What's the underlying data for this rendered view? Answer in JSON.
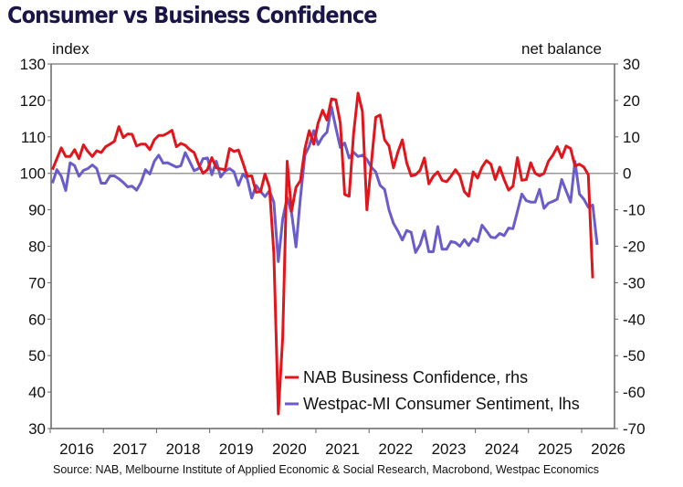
{
  "chart_data": {
    "type": "line",
    "title": "Consumer vs Business Confidence",
    "ylabel_left": "index",
    "ylabel_right": "net balance",
    "ylim_left": [
      30,
      130
    ],
    "ylim_right": [
      -70,
      30
    ],
    "yticks_left": [
      "130",
      "120",
      "110",
      "100",
      "90",
      "80",
      "70",
      "60",
      "50",
      "40",
      "30"
    ],
    "yticks_right": [
      "30",
      "20",
      "10",
      "0",
      "-10",
      "-20",
      "-30",
      "-40",
      "-50",
      "-60",
      "-70"
    ],
    "xticks": [
      "2016",
      "2017",
      "2018",
      "2019",
      "2020",
      "2021",
      "2022",
      "2023",
      "2024",
      "2025",
      "2026"
    ],
    "x_start": "2016-01",
    "x_frequency": "monthly",
    "grid": false,
    "legend_position": "bottom-right",
    "source": "Source: NAB, Melbourne Institute of Applied Economic & Social Research, Macrobond, Westpac Economics",
    "series": [
      {
        "name": "NAB Business Confidence, rhs",
        "axis": "right",
        "color": "#e0161c",
        "values": [
          1,
          4,
          7,
          4.6,
          4.6,
          6.5,
          4,
          7.8,
          6,
          4.6,
          6.2,
          5.7,
          7.3,
          8,
          8.8,
          12.8,
          9.8,
          10.8,
          10.7,
          7.5,
          8,
          8,
          6.5,
          9.2,
          10.4,
          10.4,
          11,
          11.8,
          7.3,
          8.2,
          7.7,
          6.5,
          5.7,
          2.5,
          0,
          1,
          4.3,
          1.5,
          1.2,
          1,
          6.8,
          6,
          6.4,
          2.9,
          -0.8,
          -0.7,
          -5.2,
          -5,
          -0.2,
          -3.8,
          -22,
          -66,
          -45,
          3.3,
          -10.4,
          -3.8,
          -2,
          6.7,
          11.7,
          8,
          13.8,
          17.3,
          14.6,
          20.4,
          20.2,
          13.8,
          -5.8,
          -6.3,
          10.8,
          22,
          17,
          -10,
          2.5,
          15.4,
          16,
          9.2,
          7.5,
          1.5,
          5.8,
          9.2,
          2.9,
          -0.7,
          -0.4,
          0.8,
          4.2,
          -2.9,
          -0.8,
          0.4,
          -1.9,
          -2.3,
          -0.8,
          1,
          -0.7,
          -5,
          -6.3,
          0.4,
          -1.3,
          1.7,
          3.5,
          2.5,
          -1.7,
          1.7,
          -1.7,
          -4.6,
          -3.5,
          4.3,
          -1.9,
          -1.7,
          2.9,
          0,
          -0.7,
          0,
          3.3,
          5,
          7.3,
          4.3,
          7.5,
          6.8,
          2,
          2.5,
          1.7,
          -0.4,
          -28.8
        ]
      },
      {
        "name": "Westpac-MI Consumer Sentiment, lhs",
        "axis": "left",
        "color": "#6a5cc9",
        "values": [
          97.3,
          101,
          99.2,
          95.3,
          102.9,
          102.1,
          99.2,
          100.8,
          101.3,
          102.3,
          101.3,
          97.3,
          97.3,
          99.3,
          99.3,
          98.5,
          97.5,
          96.3,
          96.5,
          95.4,
          97.5,
          101,
          99.8,
          103.3,
          105,
          102.8,
          102.9,
          102.3,
          101.7,
          102.1,
          105.7,
          103.2,
          100.7,
          101.3,
          104,
          104.2,
          99.6,
          103.3,
          99,
          100.6,
          101.3,
          100.4,
          96.7,
          99.8,
          98.5,
          93.2,
          96.7,
          95,
          93.6,
          95.2,
          92.1,
          75.8,
          87.5,
          93.3,
          89.2,
          79.8,
          93.3,
          105,
          107.5,
          111.7,
          107.9,
          110,
          111.3,
          118.2,
          112.5,
          107.1,
          108.3,
          104.2,
          105.8,
          104.6,
          105,
          103.8,
          101.7,
          100.4,
          96.7,
          95.6,
          90,
          86.3,
          84.2,
          81.7,
          84.3,
          83.8,
          78.3,
          80.4,
          84.2,
          78.5,
          78.5,
          85.4,
          79.2,
          79.2,
          81.3,
          81,
          80,
          81.8,
          80.2,
          82.1,
          81.3,
          85.8,
          84.2,
          82.5,
          82.3,
          83.5,
          82.9,
          85,
          84.8,
          89.6,
          94.3,
          92.5,
          92.1,
          92.1,
          95.6,
          90.4,
          91.8,
          92.3,
          92.9,
          98.3,
          95.2,
          92.1,
          103.3,
          94.3,
          92.9,
          90.7,
          91.3,
          80.4
        ]
      }
    ]
  }
}
